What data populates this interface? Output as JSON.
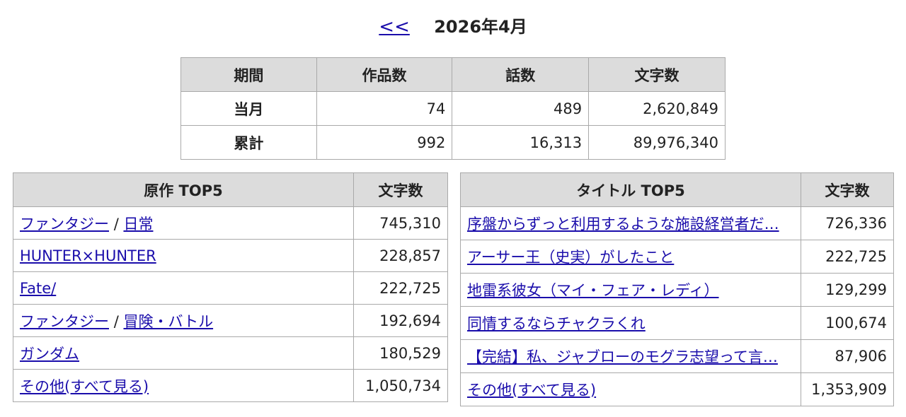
{
  "header": {
    "prev_label": "<<",
    "month": "2026年4月"
  },
  "summary": {
    "headers": [
      "期間",
      "作品数",
      "話数",
      "文字数"
    ],
    "rows": [
      {
        "label": "当月",
        "works": "74",
        "episodes": "489",
        "chars": "2,620,849"
      },
      {
        "label": "累計",
        "works": "992",
        "episodes": "16,313",
        "chars": "89,976,340"
      }
    ]
  },
  "genre_top5": {
    "headers": [
      "原作 TOP5",
      "文字数"
    ],
    "rows": [
      {
        "links": [
          "ファンタジー",
          "日常"
        ],
        "sep": "/",
        "chars": "745,310"
      },
      {
        "links": [
          "HUNTER×HUNTER"
        ],
        "chars": "228,857"
      },
      {
        "links": [
          "Fate/"
        ],
        "chars": "222,725"
      },
      {
        "links": [
          "ファンタジー",
          "冒険・バトル"
        ],
        "sep": "/",
        "chars": "192,694"
      },
      {
        "links": [
          "ガンダム"
        ],
        "chars": "180,529"
      },
      {
        "links": [
          "その他(すべて見る)"
        ],
        "chars": "1,050,734"
      }
    ]
  },
  "title_top5": {
    "headers": [
      "タイトル TOP5",
      "文字数"
    ],
    "rows": [
      {
        "title": "序盤からずっと利用するような施設経営者だ…",
        "chars": "726,336"
      },
      {
        "title": "アーサー王（史実）がしたこと",
        "chars": "222,725"
      },
      {
        "title": "地雷系彼女（マイ・フェア・レディ）",
        "chars": "129,299"
      },
      {
        "title": "同情するならチャクラくれ",
        "chars": "100,674"
      },
      {
        "title": "【完結】私、ジャブローのモグラ志望って言…",
        "chars": "87,906"
      },
      {
        "title": "その他(すべて見る)",
        "chars": "1,353,909"
      }
    ]
  }
}
